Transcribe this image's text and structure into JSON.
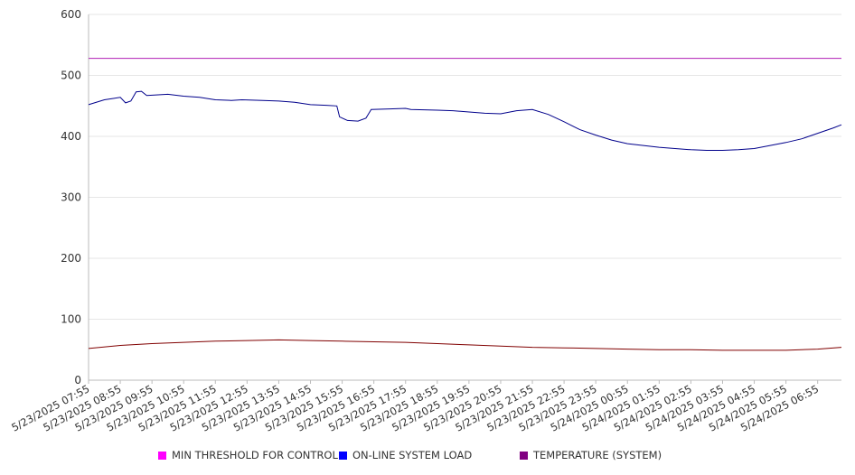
{
  "chart_data": {
    "type": "line",
    "title": "",
    "xlabel": "",
    "ylabel": "",
    "ylim": [
      0,
      600
    ],
    "y_ticks": [
      0,
      100,
      200,
      300,
      400,
      500,
      600
    ],
    "grid": "horizontal",
    "legend_position": "bottom",
    "x_tick_labels": [
      "5/23/2025 07:55",
      "5/23/2025 08:55",
      "5/23/2025 09:55",
      "5/23/2025 10:55",
      "5/23/2025 11:55",
      "5/23/2025 12:55",
      "5/23/2025 13:55",
      "5/23/2025 14:55",
      "5/23/2025 15:55",
      "5/23/2025 16:55",
      "5/23/2025 17:55",
      "5/23/2025 18:55",
      "5/23/2025 19:55",
      "5/23/2025 20:55",
      "5/23/2025 21:55",
      "5/23/2025 22:55",
      "5/23/2025 23:55",
      "5/24/2025 00:55",
      "5/24/2025 01:55",
      "5/24/2025 02:55",
      "5/24/2025 03:55",
      "5/24/2025 04:55",
      "5/24/2025 05:55",
      "5/24/2025 06:55"
    ],
    "series": [
      {
        "name": "MIN THRESHOLD FOR CONTROL",
        "color": "#b01fb5",
        "legend_color": "#ff00ff",
        "points": [
          [
            "5/23/2025 07:55",
            528
          ],
          [
            "5/24/2025 07:40",
            528
          ]
        ]
      },
      {
        "name": "ON-LINE SYSTEM LOAD",
        "color": "#00008b",
        "legend_color": "#0000ff",
        "points": [
          [
            "5/23/2025 07:55",
            452
          ],
          [
            "5/23/2025 08:25",
            460
          ],
          [
            "5/23/2025 08:55",
            464
          ],
          [
            "5/23/2025 09:05",
            455
          ],
          [
            "5/23/2025 09:15",
            458
          ],
          [
            "5/23/2025 09:25",
            473
          ],
          [
            "5/23/2025 09:35",
            474
          ],
          [
            "5/23/2025 09:45",
            467
          ],
          [
            "5/23/2025 10:25",
            469
          ],
          [
            "5/23/2025 10:55",
            466
          ],
          [
            "5/23/2025 11:25",
            464
          ],
          [
            "5/23/2025 11:55",
            460
          ],
          [
            "5/23/2025 12:25",
            459
          ],
          [
            "5/23/2025 12:45",
            460
          ],
          [
            "5/23/2025 13:25",
            459
          ],
          [
            "5/23/2025 13:55",
            458
          ],
          [
            "5/23/2025 14:25",
            456
          ],
          [
            "5/23/2025 14:55",
            452
          ],
          [
            "5/23/2025 15:25",
            451
          ],
          [
            "5/23/2025 15:45",
            450
          ],
          [
            "5/23/2025 15:50",
            432
          ],
          [
            "5/23/2025 16:05",
            426
          ],
          [
            "5/23/2025 16:25",
            425
          ],
          [
            "5/23/2025 16:40",
            430
          ],
          [
            "5/23/2025 16:50",
            444
          ],
          [
            "5/23/2025 17:25",
            445
          ],
          [
            "5/23/2025 17:55",
            446
          ],
          [
            "5/23/2025 18:05",
            444
          ],
          [
            "5/23/2025 18:55",
            443
          ],
          [
            "5/23/2025 19:25",
            442
          ],
          [
            "5/23/2025 19:55",
            440
          ],
          [
            "5/23/2025 20:25",
            438
          ],
          [
            "5/23/2025 20:55",
            437
          ],
          [
            "5/23/2025 21:25",
            442
          ],
          [
            "5/23/2025 21:55",
            444
          ],
          [
            "5/23/2025 22:25",
            436
          ],
          [
            "5/23/2025 22:55",
            424
          ],
          [
            "5/23/2025 23:25",
            411
          ],
          [
            "5/23/2025 23:55",
            402
          ],
          [
            "5/24/2025 00:25",
            394
          ],
          [
            "5/24/2025 00:55",
            388
          ],
          [
            "5/24/2025 01:25",
            385
          ],
          [
            "5/24/2025 01:55",
            382
          ],
          [
            "5/24/2025 02:25",
            380
          ],
          [
            "5/24/2025 02:55",
            378
          ],
          [
            "5/24/2025 03:25",
            377
          ],
          [
            "5/24/2025 03:55",
            377
          ],
          [
            "5/24/2025 04:25",
            378
          ],
          [
            "5/24/2025 04:55",
            380
          ],
          [
            "5/24/2025 05:25",
            385
          ],
          [
            "5/24/2025 05:55",
            390
          ],
          [
            "5/24/2025 06:25",
            396
          ],
          [
            "5/24/2025 06:55",
            405
          ],
          [
            "5/24/2025 07:25",
            414
          ],
          [
            "5/24/2025 07:40",
            419
          ]
        ]
      },
      {
        "name": "TEMPERATURE (SYSTEM)",
        "color": "#800000",
        "legend_color": "#800080",
        "points": [
          [
            "5/23/2025 07:55",
            52
          ],
          [
            "5/23/2025 08:55",
            57
          ],
          [
            "5/23/2025 09:55",
            60
          ],
          [
            "5/23/2025 10:55",
            62
          ],
          [
            "5/23/2025 11:55",
            64
          ],
          [
            "5/23/2025 12:55",
            65
          ],
          [
            "5/23/2025 13:55",
            66
          ],
          [
            "5/23/2025 14:55",
            65
          ],
          [
            "5/23/2025 15:55",
            64
          ],
          [
            "5/23/2025 16:55",
            63
          ],
          [
            "5/23/2025 17:55",
            62
          ],
          [
            "5/23/2025 18:55",
            60
          ],
          [
            "5/23/2025 19:55",
            58
          ],
          [
            "5/23/2025 20:55",
            56
          ],
          [
            "5/23/2025 21:55",
            54
          ],
          [
            "5/23/2025 22:55",
            53
          ],
          [
            "5/23/2025 23:55",
            52
          ],
          [
            "5/24/2025 00:55",
            51
          ],
          [
            "5/24/2025 01:55",
            50
          ],
          [
            "5/24/2025 02:55",
            50
          ],
          [
            "5/24/2025 03:55",
            49
          ],
          [
            "5/24/2025 04:55",
            49
          ],
          [
            "5/24/2025 05:55",
            49
          ],
          [
            "5/24/2025 06:55",
            51
          ],
          [
            "5/24/2025 07:40",
            54
          ]
        ]
      }
    ]
  }
}
